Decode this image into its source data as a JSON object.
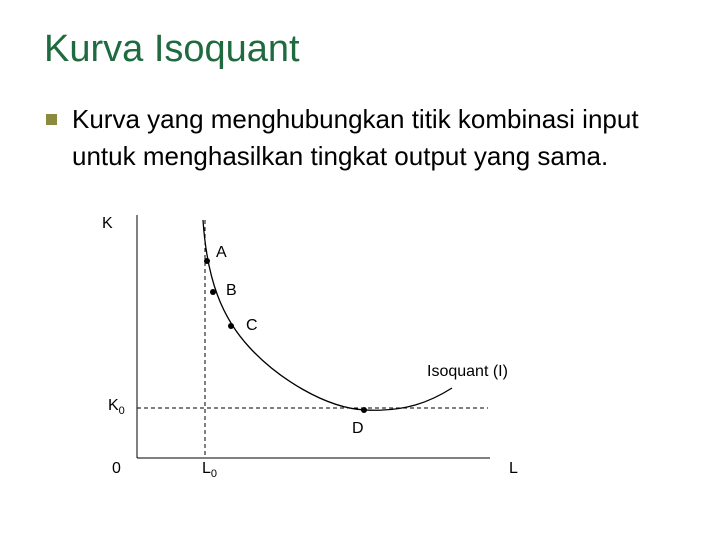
{
  "header": {
    "title": "Kurva Isoquant"
  },
  "bullets": [
    "Kurva yang menghubungkan titik kombinasi input untuk menghasilkan tingkat output yang sama."
  ],
  "diagram": {
    "y_axis_label": "K",
    "x_axis_label": "L",
    "origin_label": "0",
    "k0_label": {
      "text": "K",
      "sub": "0"
    },
    "l0_label": {
      "text": "L",
      "sub": "0"
    },
    "points": [
      "A",
      "B",
      "C",
      "D"
    ],
    "curve_label": "Isoquant (I)"
  }
}
